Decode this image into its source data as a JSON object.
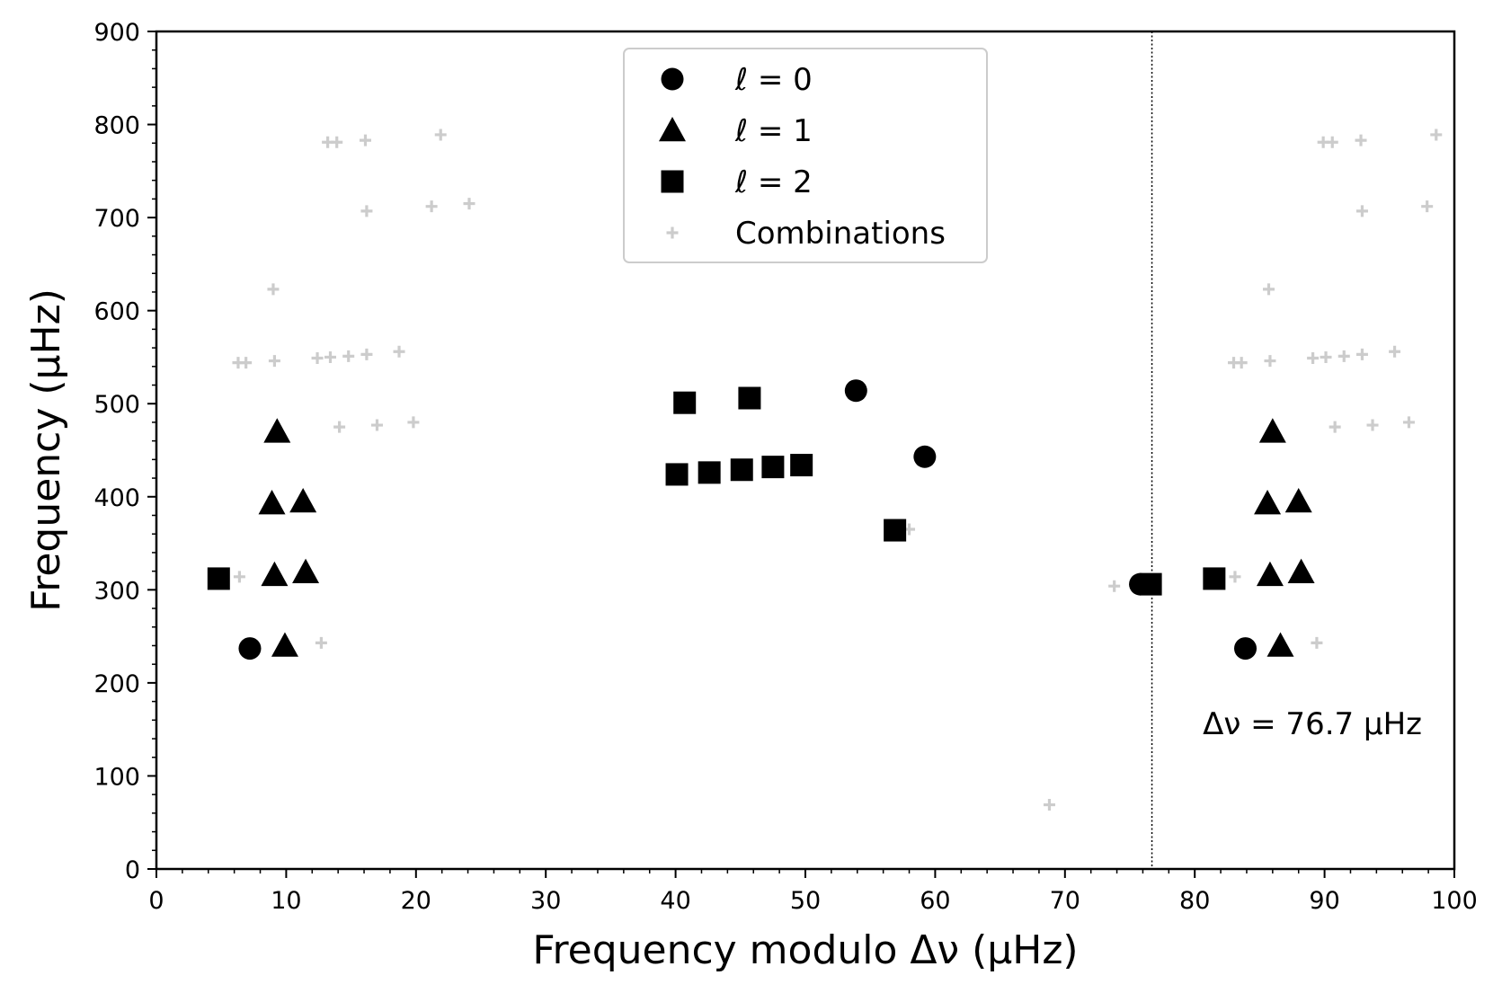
{
  "chart_data": {
    "type": "scatter",
    "title": "",
    "xlabel": "Frequency modulo Δν (μHz)",
    "ylabel": "Frequency (μHz)",
    "xlim": [
      0,
      100
    ],
    "ylim": [
      0,
      900
    ],
    "xticks": [
      0,
      10,
      20,
      30,
      40,
      50,
      60,
      70,
      80,
      90,
      100
    ],
    "yticks": [
      0,
      100,
      200,
      300,
      400,
      500,
      600,
      700,
      800,
      900
    ],
    "grid": false,
    "legend": {
      "placement": "top-center",
      "entries": [
        {
          "marker": "circle",
          "label": "ℓ = 0"
        },
        {
          "marker": "triangle",
          "label": "ℓ = 1"
        },
        {
          "marker": "square",
          "label": "ℓ = 2"
        },
        {
          "marker": "plus",
          "label": "Combinations"
        }
      ]
    },
    "annotations": [
      {
        "type": "vline",
        "x": 76.7,
        "style": "dotted"
      },
      {
        "type": "text",
        "text": "Δν = 76.7 μHz",
        "anchor": "lower-right"
      }
    ],
    "series": [
      {
        "name": "ℓ = 0",
        "marker": "circle",
        "color": "#000000",
        "points": [
          [
            7.2,
            237
          ],
          [
            53.9,
            514
          ],
          [
            59.2,
            443
          ],
          [
            75.8,
            306
          ],
          [
            83.9,
            237
          ]
        ]
      },
      {
        "name": "ℓ = 1",
        "marker": "triangle",
        "color": "#000000",
        "points": [
          [
            9.3,
            470
          ],
          [
            8.9,
            393
          ],
          [
            11.3,
            395
          ],
          [
            9.1,
            316
          ],
          [
            11.5,
            319
          ],
          [
            9.9,
            240
          ],
          [
            86.0,
            470
          ],
          [
            85.6,
            393
          ],
          [
            88.0,
            395
          ],
          [
            85.8,
            316
          ],
          [
            88.2,
            319
          ],
          [
            86.6,
            240
          ]
        ]
      },
      {
        "name": "ℓ = 2",
        "marker": "square",
        "color": "#000000",
        "points": [
          [
            4.8,
            312
          ],
          [
            40.7,
            501
          ],
          [
            45.7,
            506
          ],
          [
            40.1,
            424
          ],
          [
            42.6,
            426
          ],
          [
            45.1,
            429
          ],
          [
            47.5,
            432
          ],
          [
            49.7,
            434
          ],
          [
            56.9,
            364
          ],
          [
            76.6,
            306
          ],
          [
            81.5,
            312
          ]
        ]
      },
      {
        "name": "Combinations",
        "marker": "plus",
        "color": "#cccccc",
        "points": [
          [
            13.2,
            781
          ],
          [
            13.9,
            781
          ],
          [
            16.1,
            783
          ],
          [
            21.9,
            789
          ],
          [
            16.2,
            707
          ],
          [
            21.2,
            712
          ],
          [
            24.1,
            715
          ],
          [
            9.0,
            623
          ],
          [
            6.3,
            544
          ],
          [
            6.9,
            544
          ],
          [
            9.1,
            546
          ],
          [
            12.4,
            549
          ],
          [
            13.4,
            550
          ],
          [
            14.8,
            551
          ],
          [
            16.2,
            553
          ],
          [
            18.7,
            556
          ],
          [
            14.1,
            475
          ],
          [
            17.0,
            477
          ],
          [
            19.8,
            480
          ],
          [
            6.4,
            314
          ],
          [
            12.7,
            243
          ],
          [
            7.2,
            237
          ],
          [
            58.0,
            365
          ],
          [
            68.8,
            69
          ],
          [
            73.8,
            304
          ],
          [
            75.8,
            306
          ],
          [
            76.6,
            306
          ],
          [
            89.9,
            781
          ],
          [
            90.6,
            781
          ],
          [
            92.8,
            783
          ],
          [
            98.6,
            789
          ],
          [
            92.9,
            707
          ],
          [
            97.9,
            712
          ],
          [
            85.7,
            623
          ],
          [
            83.0,
            544
          ],
          [
            83.6,
            544
          ],
          [
            85.8,
            546
          ],
          [
            89.1,
            549
          ],
          [
            90.1,
            550
          ],
          [
            91.5,
            551
          ],
          [
            92.9,
            553
          ],
          [
            95.4,
            556
          ],
          [
            90.8,
            475
          ],
          [
            93.7,
            477
          ],
          [
            96.5,
            480
          ],
          [
            83.1,
            314
          ],
          [
            89.4,
            243
          ],
          [
            83.9,
            237
          ]
        ]
      }
    ]
  },
  "colors": {
    "marker": "#000000",
    "combination": "#cccccc",
    "legend_border": "#cccccc"
  }
}
